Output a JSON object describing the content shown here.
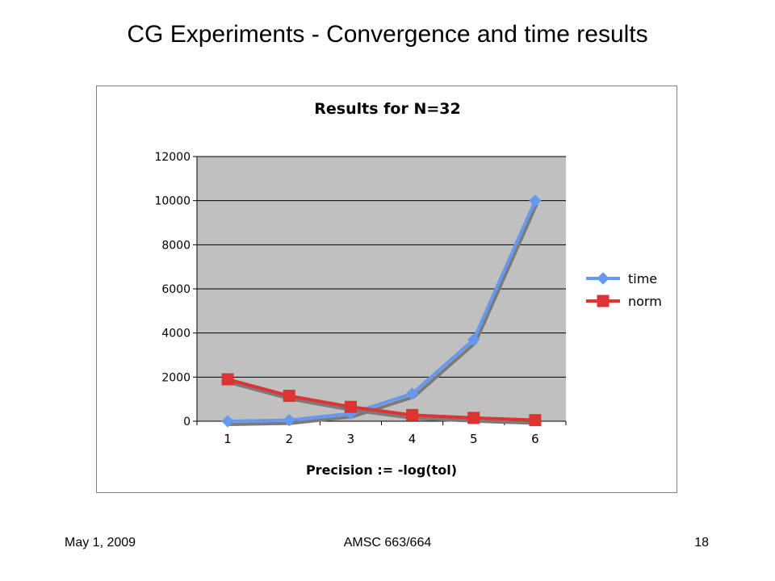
{
  "slide": {
    "title": "CG Experiments - Convergence and time results",
    "footer_date": "May 1, 2009",
    "footer_course": "AMSC 663/664",
    "page_number": "18"
  },
  "chart_data": {
    "type": "line",
    "title": "Results for N=32",
    "xlabel": "Precision := -log(tol)",
    "ylabel": "",
    "categories": [
      "1",
      "2",
      "3",
      "4",
      "5",
      "6"
    ],
    "ylim": [
      0,
      12000
    ],
    "yticks": [
      "0",
      "2000",
      "4000",
      "6000",
      "8000",
      "10000",
      "12000"
    ],
    "grid": true,
    "legend_position": "right",
    "series": [
      {
        "name": "time",
        "color": "#6699ee",
        "marker": "diamond",
        "values": [
          0,
          50,
          350,
          1250,
          3700,
          10000
        ]
      },
      {
        "name": "norm",
        "color": "#dd3333",
        "marker": "square",
        "values": [
          1900,
          1150,
          650,
          280,
          150,
          50
        ]
      }
    ]
  }
}
